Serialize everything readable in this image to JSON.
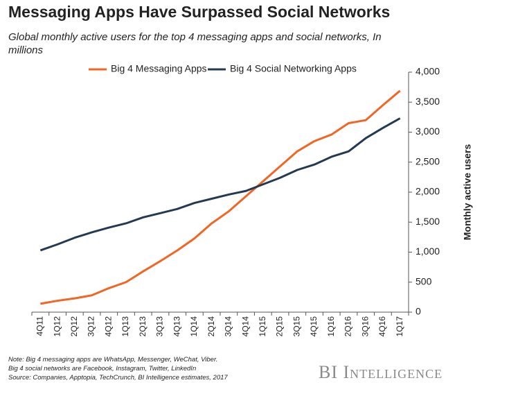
{
  "chart_data": {
    "type": "line",
    "title": "Messaging Apps Have Surpassed Social Networks",
    "subtitle": "Global monthly active users for the top 4 messaging apps and social networks, In millions",
    "y_label": "Monthly active users",
    "notes": [
      "Note: Big 4 messaging apps are WhatsApp, Messenger, WeChat, Viber.",
      "Big 4 social networks are Facebook, Instagram, Twitter, LinkedIn",
      "Source: Companies,  Apptopia, TechCrunch,  BI Intelligence estimates, 2017"
    ],
    "source_brand": "BI Intelligence",
    "categories": [
      "4Q11",
      "1Q12",
      "2Q12",
      "3Q12",
      "4Q12",
      "1Q13",
      "2Q13",
      "3Q13",
      "4Q13",
      "1Q14",
      "2Q14",
      "3Q14",
      "4Q14",
      "1Q15",
      "2Q15",
      "3Q15",
      "4Q15",
      "1Q16",
      "2Q16",
      "3Q16",
      "4Q16",
      "1Q17"
    ],
    "series": [
      {
        "name": "Big 4 Messaging Apps",
        "color": "#f26522",
        "values": [
          140,
          190,
          230,
          280,
          400,
          500,
          680,
          850,
          1030,
          1230,
          1480,
          1680,
          1930,
          2180,
          2430,
          2680,
          2850,
          2960,
          3150,
          3200,
          3450,
          3690
        ]
      },
      {
        "name": "Big 4 Social Networking Apps",
        "color": "#243a53",
        "values": [
          1030,
          1130,
          1240,
          1330,
          1410,
          1480,
          1580,
          1650,
          1720,
          1820,
          1890,
          1960,
          2020,
          2130,
          2240,
          2370,
          2460,
          2590,
          2680,
          2900,
          3070,
          3230
        ]
      }
    ],
    "ylim": [
      0,
      4000
    ],
    "yticks": [
      0,
      500,
      {
        "value": 1000,
        "label": "1,000"
      },
      {
        "value": 1500,
        "label": "1,500"
      },
      {
        "value": 2000,
        "label": "2,000"
      },
      {
        "value": 2500,
        "label": "2,500"
      },
      {
        "value": 3000,
        "label": "3,000"
      },
      {
        "value": 3500,
        "label": "3,500"
      },
      {
        "value": 4000,
        "label": "4,000"
      }
    ],
    "y_axis_side": "right"
  }
}
